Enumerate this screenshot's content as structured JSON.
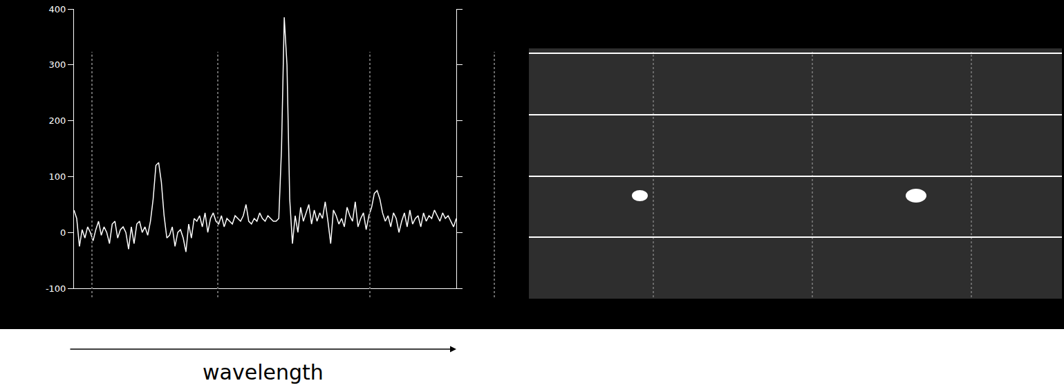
{
  "chart_data": {
    "type": "line",
    "x_label": "wavelength",
    "x": [
      0,
      1,
      2,
      3,
      4,
      5,
      6,
      7,
      8,
      9,
      10,
      11,
      12,
      13,
      14,
      15,
      16,
      17,
      18,
      19,
      20,
      21,
      22,
      23,
      24,
      25,
      26,
      27,
      28,
      29,
      30,
      31,
      32,
      33,
      34,
      35,
      36,
      37,
      38,
      39,
      40,
      41,
      42,
      43,
      44,
      45,
      46,
      47,
      48,
      49,
      50,
      51,
      52,
      53,
      54,
      55,
      56,
      57,
      58,
      59,
      60,
      61,
      62,
      63,
      64,
      65,
      66,
      67,
      68,
      69,
      70,
      71,
      72,
      73,
      74,
      75,
      76,
      77,
      78,
      79,
      80,
      81,
      82,
      83,
      84,
      85,
      86,
      87,
      88,
      89,
      90,
      91,
      92,
      93,
      94,
      95,
      96,
      97,
      98,
      99,
      100,
      101,
      102,
      103,
      104,
      105,
      106,
      107,
      108,
      109,
      110,
      111,
      112,
      113,
      114,
      115,
      116,
      117,
      118,
      119,
      120,
      121,
      122,
      123,
      124,
      125,
      126,
      127,
      128,
      129,
      130,
      131,
      132,
      133,
      134,
      135,
      136,
      137,
      138,
      139,
      140
    ],
    "values": [
      40,
      25,
      -25,
      5,
      -10,
      10,
      0,
      -15,
      5,
      20,
      -5,
      10,
      0,
      -20,
      15,
      20,
      -10,
      5,
      10,
      0,
      -30,
      10,
      -20,
      15,
      20,
      0,
      10,
      -5,
      20,
      60,
      120,
      125,
      90,
      30,
      -10,
      -5,
      10,
      -25,
      0,
      5,
      -10,
      -35,
      15,
      -10,
      25,
      20,
      30,
      10,
      35,
      0,
      25,
      35,
      20,
      15,
      30,
      10,
      25,
      20,
      15,
      30,
      25,
      20,
      30,
      50,
      20,
      15,
      25,
      20,
      35,
      25,
      20,
      30,
      25,
      20,
      20,
      25,
      150,
      385,
      300,
      60,
      -20,
      30,
      0,
      45,
      20,
      35,
      50,
      15,
      40,
      20,
      35,
      25,
      55,
      20,
      -20,
      40,
      30,
      15,
      25,
      10,
      45,
      30,
      20,
      55,
      10,
      25,
      35,
      5,
      30,
      45,
      70,
      75,
      60,
      35,
      20,
      30,
      10,
      35,
      25,
      0,
      20,
      35,
      10,
      40,
      15,
      25,
      30,
      10,
      35,
      20,
      30,
      25,
      40,
      30,
      20,
      35,
      25,
      30,
      20,
      10,
      25
    ],
    "color": "#ffffff",
    "xlim": [
      0,
      140
    ],
    "ylim": [
      -100,
      400
    ],
    "yticks": [
      -100,
      0,
      100,
      200,
      300,
      400
    ],
    "tick_labels": "y",
    "grid": false
  }
}
